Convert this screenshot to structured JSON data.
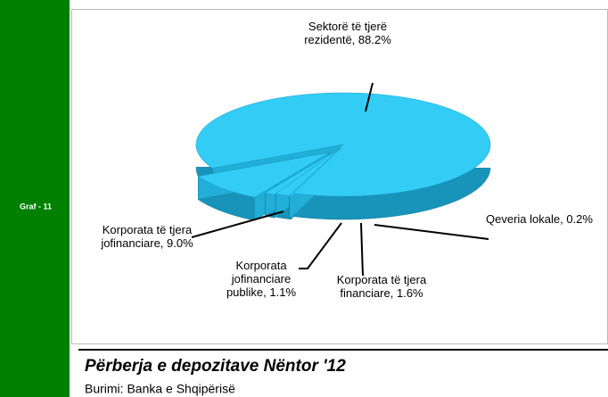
{
  "side_label": "Graf - 11",
  "chart_data": {
    "type": "pie3d",
    "title": "Përberja e depozitave Nëntor '12",
    "source": "Burimi: Banka e Shqipërisë",
    "categories": [
      "Sektorë të tjerë rezidentë,",
      "Korporata të tjera jofinanciare,",
      "Korporata jofinanciare publike,",
      "Korporata të tjera financiare,",
      "Qeveria lokale,"
    ],
    "values": [
      88.2,
      9.0,
      1.1,
      1.6,
      0.2
    ],
    "value_labels": [
      "88.2%",
      "9.0%",
      "1.1%",
      "1.6%",
      "0.2%"
    ],
    "color": "#33ccf5"
  }
}
